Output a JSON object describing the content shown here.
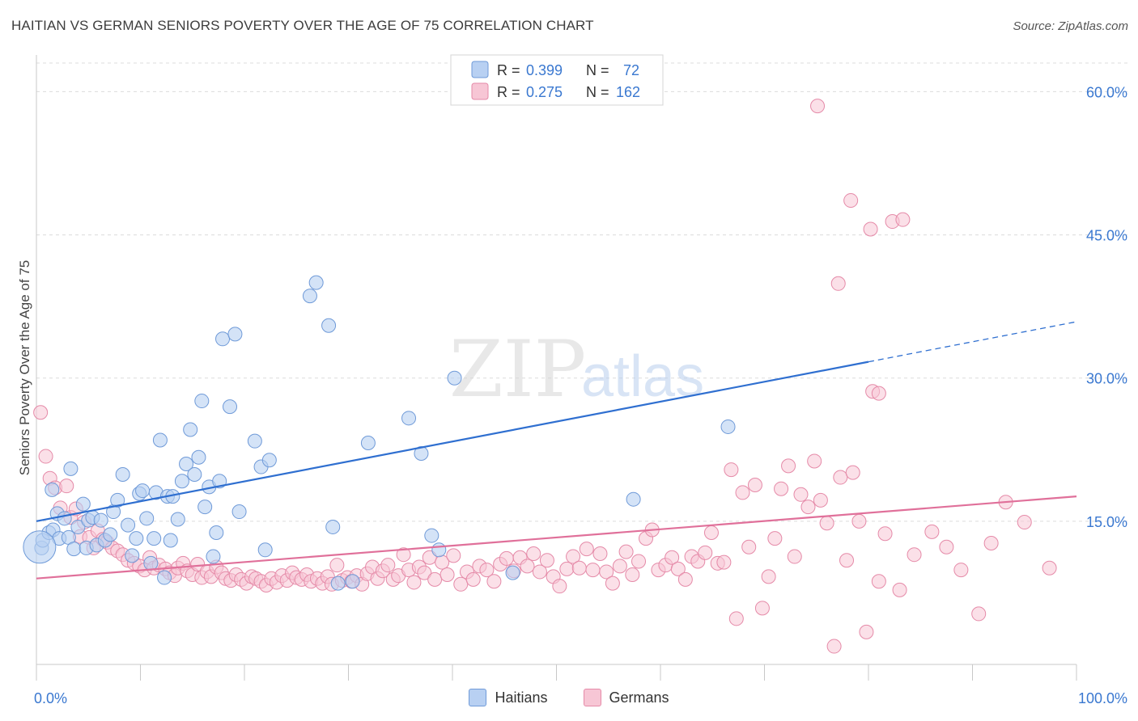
{
  "header": {
    "title": "HAITIAN VS GERMAN SENIORS POVERTY OVER THE AGE OF 75 CORRELATION CHART",
    "source": "Source: ZipAtlas.com"
  },
  "watermark": {
    "zip": "ZIP",
    "atlas": "atlas"
  },
  "colors": {
    "blue_fill": "#b8d0f2",
    "blue_stroke": "#6f9ad8",
    "blue_line": "#2f6fd0",
    "pink_fill": "#f7c6d5",
    "pink_stroke": "#e58aa8",
    "pink_line": "#e0709a",
    "value_text": "#3a78d0"
  },
  "legend_top": [
    {
      "r_label": "R =",
      "r_value": "0.399",
      "n_label": "N =",
      "n_value": "72"
    },
    {
      "r_label": "R =",
      "r_value": "0.275",
      "n_label": "N =",
      "n_value": "162"
    }
  ],
  "chart_data": {
    "type": "scatter",
    "xlabel": "",
    "ylabel": "Seniors Poverty Over the Age of 75",
    "xlim": [
      0,
      100
    ],
    "ylim": [
      0,
      63
    ],
    "x_tick_labels": [
      "0.0%",
      "100.0%"
    ],
    "y_tick_labels": [
      "15.0%",
      "30.0%",
      "45.0%",
      "60.0%"
    ],
    "y_ticks": [
      15,
      30,
      45,
      60
    ],
    "grid": "horizontal dashed",
    "legend_position": "top-center and bottom",
    "series": [
      {
        "name": "Haitians",
        "r": 0.399,
        "n": 72,
        "trend": {
          "x0": 0,
          "y0": 15.0,
          "x1": 80,
          "y1": 31.7,
          "dash_to_x": 100,
          "dash_to_y": 35.9
        },
        "points": [
          [
            0.5,
            12.2
          ],
          [
            0.6,
            13.0
          ],
          [
            1.2,
            13.8
          ],
          [
            1.6,
            14.1
          ],
          [
            1.5,
            18.3
          ],
          [
            2.0,
            15.8
          ],
          [
            2.2,
            13.2
          ],
          [
            2.7,
            15.3
          ],
          [
            3.1,
            13.3
          ],
          [
            3.3,
            20.5
          ],
          [
            3.6,
            12.1
          ],
          [
            4.0,
            14.4
          ],
          [
            4.5,
            16.8
          ],
          [
            4.8,
            12.2
          ],
          [
            5.0,
            15.1
          ],
          [
            5.4,
            15.4
          ],
          [
            5.8,
            12.5
          ],
          [
            6.2,
            15.1
          ],
          [
            6.6,
            13.0
          ],
          [
            7.1,
            13.6
          ],
          [
            7.4,
            16.0
          ],
          [
            7.8,
            17.2
          ],
          [
            8.3,
            19.9
          ],
          [
            8.8,
            14.6
          ],
          [
            9.2,
            11.4
          ],
          [
            9.6,
            13.2
          ],
          [
            9.9,
            17.9
          ],
          [
            10.2,
            18.2
          ],
          [
            10.6,
            15.3
          ],
          [
            11.0,
            10.6
          ],
          [
            11.3,
            13.2
          ],
          [
            11.5,
            18.0
          ],
          [
            11.9,
            23.5
          ],
          [
            12.3,
            9.1
          ],
          [
            12.6,
            17.6
          ],
          [
            12.9,
            13.0
          ],
          [
            13.1,
            17.6
          ],
          [
            13.6,
            15.2
          ],
          [
            14.0,
            19.2
          ],
          [
            14.4,
            21.0
          ],
          [
            14.8,
            24.6
          ],
          [
            15.2,
            19.9
          ],
          [
            15.6,
            21.7
          ],
          [
            15.9,
            27.6
          ],
          [
            16.2,
            16.5
          ],
          [
            16.6,
            18.6
          ],
          [
            17.0,
            11.3
          ],
          [
            17.3,
            13.8
          ],
          [
            17.6,
            19.2
          ],
          [
            17.9,
            34.1
          ],
          [
            18.6,
            27.0
          ],
          [
            19.1,
            34.6
          ],
          [
            19.5,
            16.0
          ],
          [
            21.0,
            23.4
          ],
          [
            21.6,
            20.7
          ],
          [
            22.0,
            12.0
          ],
          [
            22.4,
            21.4
          ],
          [
            26.3,
            38.6
          ],
          [
            26.9,
            40.0
          ],
          [
            28.1,
            35.5
          ],
          [
            28.5,
            14.4
          ],
          [
            29.0,
            8.5
          ],
          [
            30.4,
            8.7
          ],
          [
            31.9,
            23.2
          ],
          [
            35.8,
            25.8
          ],
          [
            37.0,
            22.1
          ],
          [
            38.0,
            13.5
          ],
          [
            38.7,
            12.0
          ],
          [
            40.2,
            30.0
          ],
          [
            45.8,
            9.6
          ],
          [
            57.4,
            17.3
          ],
          [
            66.5,
            24.9
          ]
        ],
        "big_points": [
          [
            0.3,
            12.3
          ]
        ]
      },
      {
        "name": "Germans",
        "r": 0.275,
        "n": 162,
        "trend": {
          "x0": 0,
          "y0": 9.0,
          "x1": 100,
          "y1": 17.6
        },
        "points": [
          [
            0.4,
            26.4
          ],
          [
            0.9,
            21.8
          ],
          [
            1.3,
            19.5
          ],
          [
            1.8,
            18.5
          ],
          [
            2.3,
            16.4
          ],
          [
            2.9,
            18.7
          ],
          [
            3.3,
            15.4
          ],
          [
            3.8,
            16.3
          ],
          [
            4.2,
            13.4
          ],
          [
            4.6,
            14.9
          ],
          [
            5.1,
            13.3
          ],
          [
            5.5,
            12.2
          ],
          [
            5.9,
            14.0
          ],
          [
            6.4,
            13.1
          ],
          [
            6.8,
            12.8
          ],
          [
            7.3,
            12.2
          ],
          [
            7.8,
            11.9
          ],
          [
            8.3,
            11.5
          ],
          [
            8.8,
            10.9
          ],
          [
            9.4,
            10.6
          ],
          [
            9.9,
            10.3
          ],
          [
            10.4,
            9.9
          ],
          [
            10.9,
            11.2
          ],
          [
            11.3,
            10.1
          ],
          [
            11.8,
            10.4
          ],
          [
            12.4,
            10.0
          ],
          [
            12.8,
            9.6
          ],
          [
            13.3,
            9.3
          ],
          [
            13.6,
            10.1
          ],
          [
            14.1,
            10.6
          ],
          [
            14.5,
            9.8
          ],
          [
            15.0,
            9.4
          ],
          [
            15.5,
            10.5
          ],
          [
            15.9,
            9.1
          ],
          [
            16.4,
            9.7
          ],
          [
            16.8,
            9.2
          ],
          [
            17.3,
            10.2
          ],
          [
            17.8,
            9.6
          ],
          [
            18.2,
            9.0
          ],
          [
            18.7,
            8.8
          ],
          [
            19.2,
            9.4
          ],
          [
            19.7,
            8.9
          ],
          [
            20.2,
            8.5
          ],
          [
            20.7,
            9.2
          ],
          [
            21.1,
            9.0
          ],
          [
            21.6,
            8.7
          ],
          [
            22.1,
            8.3
          ],
          [
            22.6,
            9.0
          ],
          [
            23.1,
            8.6
          ],
          [
            23.6,
            9.3
          ],
          [
            24.1,
            8.8
          ],
          [
            24.6,
            9.6
          ],
          [
            25.0,
            9.1
          ],
          [
            25.5,
            8.9
          ],
          [
            26.0,
            9.4
          ],
          [
            26.4,
            8.7
          ],
          [
            27.0,
            9.0
          ],
          [
            27.5,
            8.5
          ],
          [
            28.0,
            9.2
          ],
          [
            28.4,
            8.4
          ],
          [
            28.9,
            10.4
          ],
          [
            29.4,
            8.8
          ],
          [
            29.9,
            9.1
          ],
          [
            30.3,
            8.7
          ],
          [
            30.8,
            9.3
          ],
          [
            31.3,
            8.4
          ],
          [
            31.8,
            9.5
          ],
          [
            32.3,
            10.2
          ],
          [
            32.8,
            9.0
          ],
          [
            33.3,
            9.8
          ],
          [
            33.8,
            10.4
          ],
          [
            34.3,
            8.9
          ],
          [
            34.8,
            9.3
          ],
          [
            35.3,
            11.5
          ],
          [
            35.8,
            9.9
          ],
          [
            36.3,
            8.6
          ],
          [
            36.8,
            10.2
          ],
          [
            37.3,
            9.6
          ],
          [
            37.8,
            11.2
          ],
          [
            38.3,
            8.9
          ],
          [
            39.0,
            10.7
          ],
          [
            39.5,
            9.4
          ],
          [
            40.1,
            11.4
          ],
          [
            40.8,
            8.4
          ],
          [
            41.4,
            9.7
          ],
          [
            42.0,
            8.9
          ],
          [
            42.6,
            10.3
          ],
          [
            43.3,
            9.9
          ],
          [
            44.0,
            8.7
          ],
          [
            44.6,
            10.5
          ],
          [
            45.2,
            11.1
          ],
          [
            45.9,
            9.8
          ],
          [
            46.5,
            11.2
          ],
          [
            47.2,
            10.3
          ],
          [
            47.8,
            11.6
          ],
          [
            48.4,
            9.7
          ],
          [
            49.1,
            10.9
          ],
          [
            49.7,
            9.2
          ],
          [
            50.3,
            8.2
          ],
          [
            51.0,
            10.0
          ],
          [
            51.6,
            11.3
          ],
          [
            52.2,
            10.1
          ],
          [
            52.9,
            12.1
          ],
          [
            53.5,
            9.9
          ],
          [
            54.2,
            11.6
          ],
          [
            54.8,
            9.7
          ],
          [
            55.4,
            8.5
          ],
          [
            56.1,
            10.3
          ],
          [
            56.7,
            11.8
          ],
          [
            57.3,
            9.4
          ],
          [
            57.9,
            10.8
          ],
          [
            58.6,
            13.2
          ],
          [
            59.2,
            14.1
          ],
          [
            59.8,
            9.9
          ],
          [
            60.5,
            10.4
          ],
          [
            61.1,
            11.2
          ],
          [
            61.7,
            10.0
          ],
          [
            62.4,
            8.9
          ],
          [
            63.0,
            11.3
          ],
          [
            63.6,
            10.8
          ],
          [
            64.3,
            11.7
          ],
          [
            64.9,
            13.8
          ],
          [
            65.5,
            10.6
          ],
          [
            66.1,
            10.7
          ],
          [
            66.8,
            20.4
          ],
          [
            67.3,
            4.8
          ],
          [
            67.9,
            18.0
          ],
          [
            68.5,
            12.3
          ],
          [
            69.1,
            18.8
          ],
          [
            69.8,
            5.9
          ],
          [
            70.4,
            9.2
          ],
          [
            71.0,
            13.2
          ],
          [
            71.6,
            18.4
          ],
          [
            72.3,
            20.8
          ],
          [
            72.9,
            11.3
          ],
          [
            73.5,
            17.8
          ],
          [
            74.2,
            16.5
          ],
          [
            74.8,
            21.3
          ],
          [
            75.4,
            17.2
          ],
          [
            76.0,
            14.8
          ],
          [
            76.7,
            1.9
          ],
          [
            77.3,
            19.6
          ],
          [
            77.9,
            10.9
          ],
          [
            78.5,
            20.1
          ],
          [
            79.1,
            15.0
          ],
          [
            79.8,
            3.4
          ],
          [
            80.4,
            28.6
          ],
          [
            81.0,
            8.7
          ],
          [
            81.6,
            13.7
          ],
          [
            82.3,
            46.4
          ],
          [
            83.0,
            7.8
          ],
          [
            84.4,
            11.5
          ],
          [
            86.1,
            13.9
          ],
          [
            87.5,
            12.3
          ],
          [
            88.9,
            9.9
          ],
          [
            90.6,
            5.3
          ],
          [
            91.8,
            12.7
          ],
          [
            93.2,
            17.0
          ],
          [
            95.0,
            14.9
          ],
          [
            97.4,
            10.1
          ],
          [
            75.1,
            58.5
          ],
          [
            77.1,
            39.9
          ],
          [
            78.3,
            48.6
          ],
          [
            80.2,
            45.6
          ],
          [
            81.0,
            28.4
          ],
          [
            83.3,
            46.6
          ]
        ]
      }
    ]
  },
  "bottom_legend": [
    "Haitians",
    "Germans"
  ]
}
